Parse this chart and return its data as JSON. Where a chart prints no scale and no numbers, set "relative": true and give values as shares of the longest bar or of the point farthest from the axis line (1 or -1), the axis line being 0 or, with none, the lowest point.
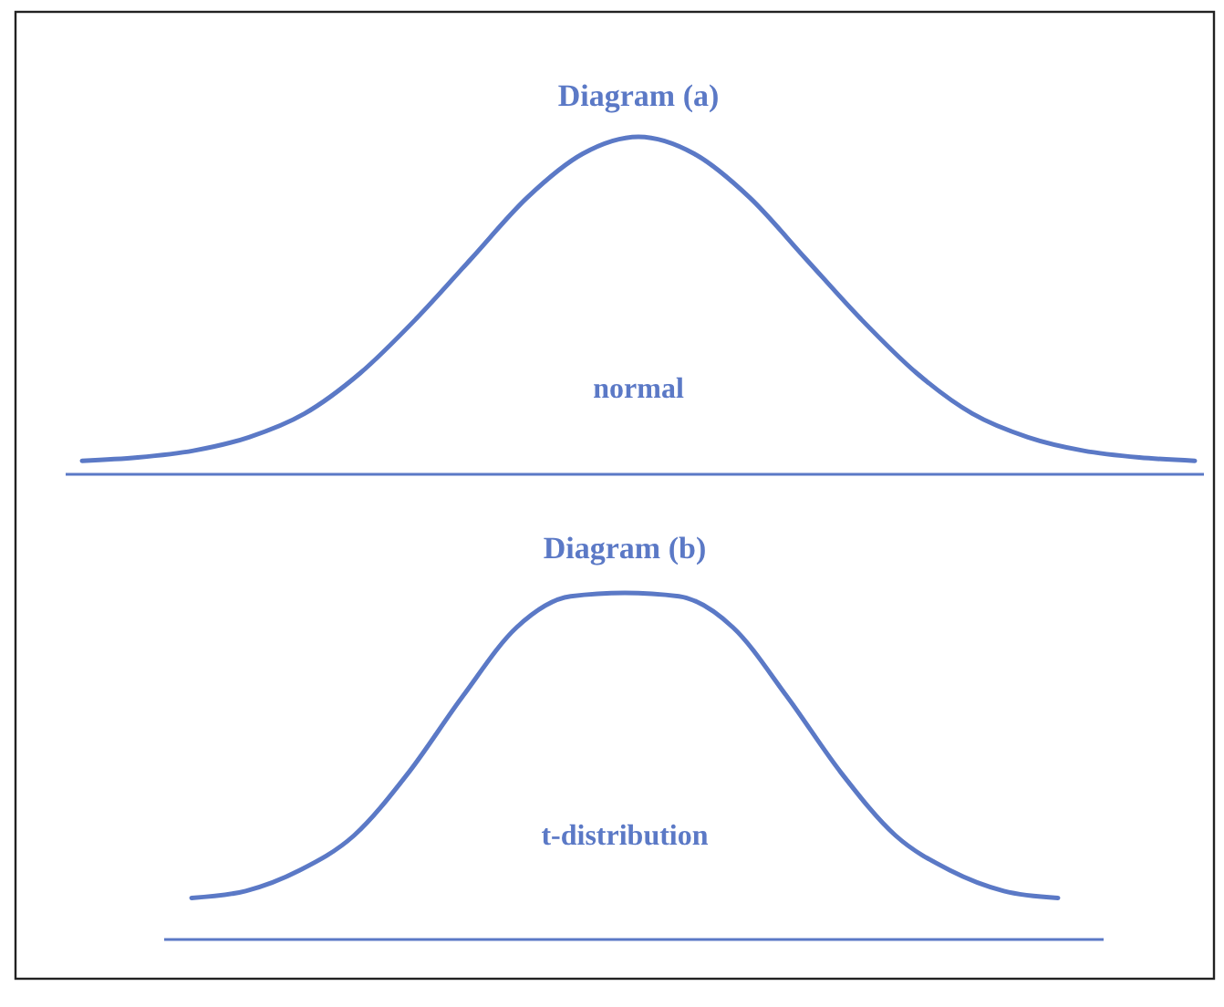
{
  "chart_data": [
    {
      "type": "line",
      "title": "Diagram (a)",
      "annotations": [
        "normal"
      ],
      "relative": true,
      "categories": [
        null,
        null,
        null,
        null,
        null,
        null,
        null,
        null,
        null,
        null,
        null,
        null,
        null,
        null,
        null,
        null,
        null,
        null,
        null,
        null,
        null
      ],
      "series": [
        {
          "color": "#5b79c6",
          "values": [
            0.04,
            0.05,
            0.07,
            0.11,
            0.18,
            0.3,
            0.46,
            0.64,
            0.82,
            0.95,
            1,
            0.95,
            0.82,
            0.64,
            0.46,
            0.3,
            0.18,
            0.11,
            0.07,
            0.05,
            0.04
          ]
        }
      ]
    },
    {
      "type": "line",
      "title": "Diagram (b)",
      "annotations": [
        "t-distribution"
      ],
      "relative": true,
      "categories": [
        null,
        null,
        null,
        null,
        null,
        null,
        null,
        null,
        null,
        null,
        null,
        null,
        null,
        null,
        null,
        null,
        null
      ],
      "series": [
        {
          "color": "#5b79c6",
          "values": [
            0.12,
            0.14,
            0.2,
            0.3,
            0.48,
            0.7,
            0.9,
            0.99,
            1,
            0.99,
            0.9,
            0.7,
            0.48,
            0.3,
            0.2,
            0.14,
            0.12
          ]
        }
      ]
    }
  ]
}
